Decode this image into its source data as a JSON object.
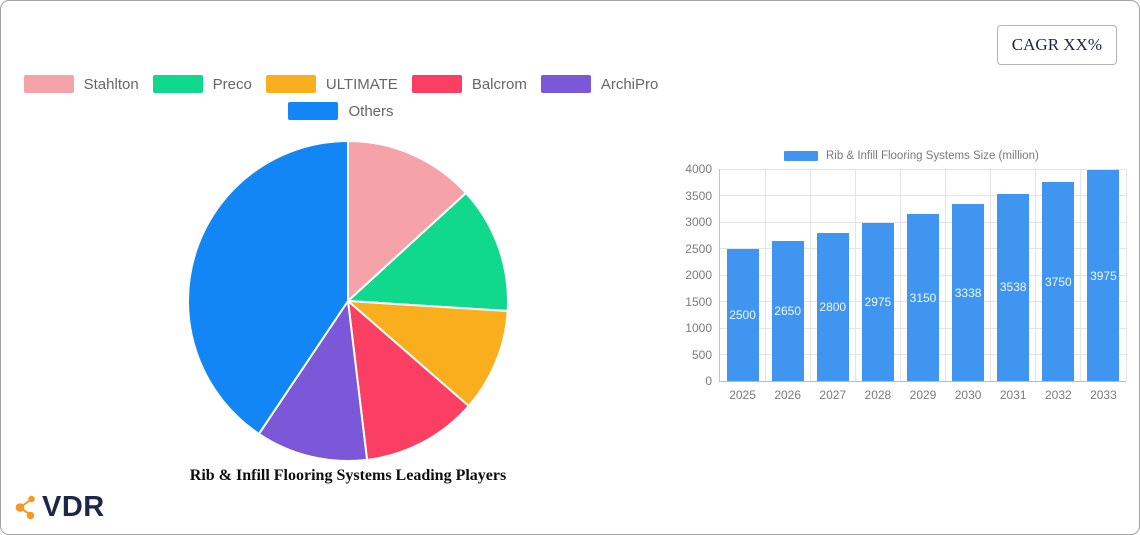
{
  "cagr_badge": {
    "label": "CAGR XX%"
  },
  "logo": {
    "text": "VDR",
    "icon_color": "#F8981D",
    "text_color": "#1C2749"
  },
  "chart_data": [
    {
      "type": "pie",
      "title": "Rib & Infill Flooring Systems Leading Players",
      "legend_position": "top-center",
      "direction": "clockwise",
      "start_angle_deg": 0,
      "series": [
        {
          "name": "Stahlton",
          "value": 13.2,
          "color": "#F5A3A9"
        },
        {
          "name": "Preco",
          "value": 12.8,
          "color": "#10D98E"
        },
        {
          "name": "ULTIMATE",
          "value": 10.4,
          "color": "#F9AF1D"
        },
        {
          "name": "Balcrom",
          "value": 11.7,
          "color": "#FA3F62"
        },
        {
          "name": "ArchiPro",
          "value": 11.3,
          "color": "#7A58D8"
        },
        {
          "name": "Others",
          "value": 40.6,
          "color": "#1186F4"
        }
      ]
    },
    {
      "type": "bar",
      "legend_label": "Rib & Infill Flooring Systems Size (million)",
      "bar_color": "#3F95EF",
      "categories": [
        "2025",
        "2026",
        "2027",
        "2028",
        "2029",
        "2030",
        "2031",
        "2032",
        "2033"
      ],
      "values": [
        2500,
        2650,
        2800,
        2975,
        3150,
        3338,
        3538,
        3750,
        3975
      ],
      "ylim": [
        0,
        4000
      ],
      "yticks": [
        0,
        500,
        1000,
        1500,
        2000,
        2500,
        3000,
        3500,
        4000
      ],
      "grid": true,
      "value_label_position": "inside-center"
    }
  ]
}
